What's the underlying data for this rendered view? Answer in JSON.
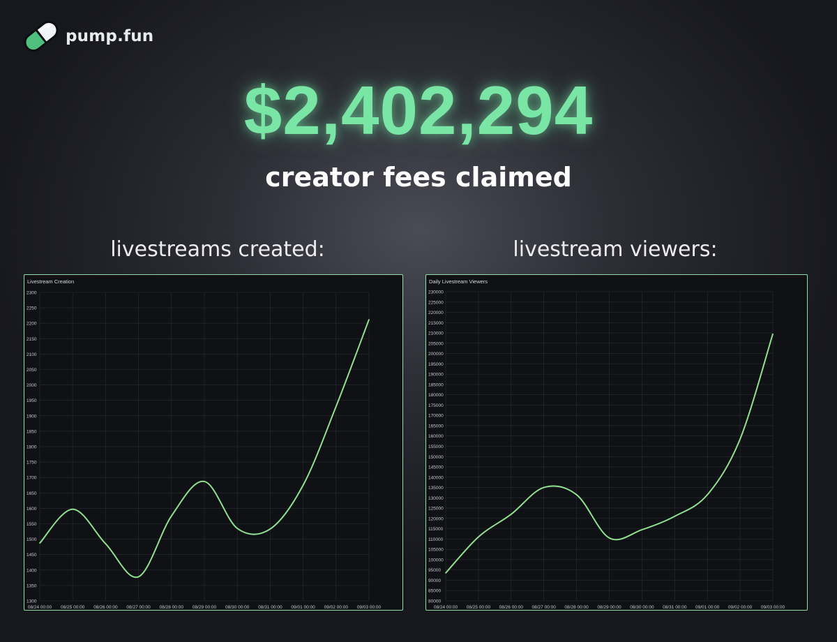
{
  "brand": {
    "name": "pump.fun",
    "logo_icon": "pill-icon"
  },
  "headline": {
    "amount": "$2,402,294",
    "caption": "creator fees claimed"
  },
  "sections": [
    {
      "title": "livestreams created:"
    },
    {
      "title": "livestream viewers:"
    }
  ],
  "colors": {
    "accent": "#7ae6a6",
    "line": "#8fe08f",
    "panel_border": "#8fe0a8",
    "panel_bg": "#101115"
  },
  "chart_data": [
    {
      "type": "line",
      "title": "Livestream Creation",
      "x_tick_labels": [
        "08/24 00:00",
        "08/25 00:00",
        "08/26 00:00",
        "08/27 00:00",
        "08/28 00:00",
        "08/29 00:00",
        "08/30 00:00",
        "08/31 00:00",
        "09/01 00:00",
        "09/02 00:00",
        "09/03 00:00"
      ],
      "y_ticks": [
        1300,
        1350,
        1400,
        1450,
        1500,
        1550,
        1600,
        1650,
        1700,
        1750,
        1800,
        1850,
        1900,
        1950,
        2000,
        2050,
        2100,
        2150,
        2200,
        2250,
        2300
      ],
      "ylim": [
        1300,
        2300
      ],
      "grid": true,
      "series": [
        {
          "x": [
            "08/24 00:00",
            "08/25 00:00",
            "08/26 00:00",
            "08/27 00:00",
            "08/28 00:00",
            "08/29 00:00",
            "08/30 00:00",
            "08/31 00:00",
            "09/01 00:00",
            "09/02 00:00",
            "09/03 00:00"
          ],
          "values": [
            1487,
            1597,
            1485,
            1378,
            1575,
            1687,
            1535,
            1533,
            1675,
            1930,
            2212
          ]
        }
      ]
    },
    {
      "type": "line",
      "title": "Daily Livestream Viewers",
      "x_tick_labels": [
        "08/24 00:00",
        "08/25 00:00",
        "08/26 00:00",
        "08/27 00:00",
        "08/28 00:00",
        "08/29 00:00",
        "08/30 00:00",
        "08/31 00:00",
        "09/01 00:00",
        "09/02 00:00",
        "09/03 00:00"
      ],
      "y_ticks": [
        80000,
        85000,
        90000,
        95000,
        100000,
        105000,
        110000,
        115000,
        120000,
        125000,
        130000,
        135000,
        140000,
        145000,
        150000,
        155000,
        160000,
        165000,
        170000,
        175000,
        180000,
        185000,
        190000,
        195000,
        200000,
        205000,
        210000,
        215000,
        220000,
        225000,
        230000
      ],
      "ylim": [
        80000,
        230000
      ],
      "grid": true,
      "series": [
        {
          "x": [
            "08/24 00:00",
            "08/25 00:00",
            "08/26 00:00",
            "08/27 00:00",
            "08/28 00:00",
            "08/29 00:00",
            "08/30 00:00",
            "08/31 00:00",
            "09/01 00:00",
            "09/02 00:00",
            "09/03 00:00"
          ],
          "values": [
            93500,
            111000,
            122000,
            135000,
            131500,
            110500,
            114500,
            121000,
            131500,
            158500,
            209500
          ]
        }
      ]
    }
  ]
}
